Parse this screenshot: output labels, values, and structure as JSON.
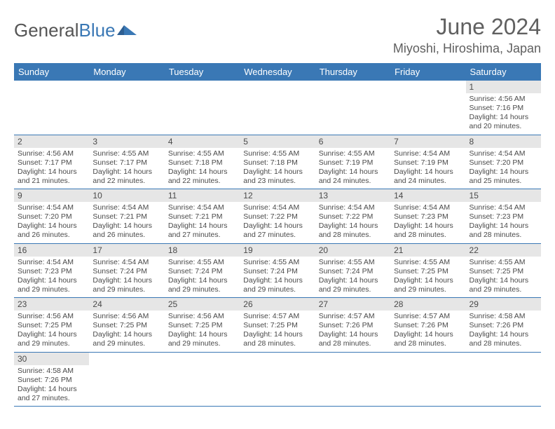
{
  "brand": {
    "part1": "General",
    "part2": "Blue"
  },
  "title": "June 2024",
  "location": "Miyoshi, Hiroshima, Japan",
  "colors": {
    "header_bg": "#3a78b5",
    "header_fg": "#ffffff",
    "row_shade": "#e6e6e6",
    "row_border": "#3a78b5",
    "text": "#4a4a4a"
  },
  "day_headers": [
    "Sunday",
    "Monday",
    "Tuesday",
    "Wednesday",
    "Thursday",
    "Friday",
    "Saturday"
  ],
  "weeks": [
    [
      null,
      null,
      null,
      null,
      null,
      null,
      {
        "n": "1",
        "sr": "4:56 AM",
        "ss": "7:16 PM",
        "dl": "14 hours and 20 minutes."
      }
    ],
    [
      {
        "n": "2",
        "sr": "4:56 AM",
        "ss": "7:17 PM",
        "dl": "14 hours and 21 minutes."
      },
      {
        "n": "3",
        "sr": "4:55 AM",
        "ss": "7:17 PM",
        "dl": "14 hours and 22 minutes."
      },
      {
        "n": "4",
        "sr": "4:55 AM",
        "ss": "7:18 PM",
        "dl": "14 hours and 22 minutes."
      },
      {
        "n": "5",
        "sr": "4:55 AM",
        "ss": "7:18 PM",
        "dl": "14 hours and 23 minutes."
      },
      {
        "n": "6",
        "sr": "4:55 AM",
        "ss": "7:19 PM",
        "dl": "14 hours and 24 minutes."
      },
      {
        "n": "7",
        "sr": "4:54 AM",
        "ss": "7:19 PM",
        "dl": "14 hours and 24 minutes."
      },
      {
        "n": "8",
        "sr": "4:54 AM",
        "ss": "7:20 PM",
        "dl": "14 hours and 25 minutes."
      }
    ],
    [
      {
        "n": "9",
        "sr": "4:54 AM",
        "ss": "7:20 PM",
        "dl": "14 hours and 26 minutes."
      },
      {
        "n": "10",
        "sr": "4:54 AM",
        "ss": "7:21 PM",
        "dl": "14 hours and 26 minutes."
      },
      {
        "n": "11",
        "sr": "4:54 AM",
        "ss": "7:21 PM",
        "dl": "14 hours and 27 minutes."
      },
      {
        "n": "12",
        "sr": "4:54 AM",
        "ss": "7:22 PM",
        "dl": "14 hours and 27 minutes."
      },
      {
        "n": "13",
        "sr": "4:54 AM",
        "ss": "7:22 PM",
        "dl": "14 hours and 28 minutes."
      },
      {
        "n": "14",
        "sr": "4:54 AM",
        "ss": "7:23 PM",
        "dl": "14 hours and 28 minutes."
      },
      {
        "n": "15",
        "sr": "4:54 AM",
        "ss": "7:23 PM",
        "dl": "14 hours and 28 minutes."
      }
    ],
    [
      {
        "n": "16",
        "sr": "4:54 AM",
        "ss": "7:23 PM",
        "dl": "14 hours and 29 minutes."
      },
      {
        "n": "17",
        "sr": "4:54 AM",
        "ss": "7:24 PM",
        "dl": "14 hours and 29 minutes."
      },
      {
        "n": "18",
        "sr": "4:55 AM",
        "ss": "7:24 PM",
        "dl": "14 hours and 29 minutes."
      },
      {
        "n": "19",
        "sr": "4:55 AM",
        "ss": "7:24 PM",
        "dl": "14 hours and 29 minutes."
      },
      {
        "n": "20",
        "sr": "4:55 AM",
        "ss": "7:24 PM",
        "dl": "14 hours and 29 minutes."
      },
      {
        "n": "21",
        "sr": "4:55 AM",
        "ss": "7:25 PM",
        "dl": "14 hours and 29 minutes."
      },
      {
        "n": "22",
        "sr": "4:55 AM",
        "ss": "7:25 PM",
        "dl": "14 hours and 29 minutes."
      }
    ],
    [
      {
        "n": "23",
        "sr": "4:56 AM",
        "ss": "7:25 PM",
        "dl": "14 hours and 29 minutes."
      },
      {
        "n": "24",
        "sr": "4:56 AM",
        "ss": "7:25 PM",
        "dl": "14 hours and 29 minutes."
      },
      {
        "n": "25",
        "sr": "4:56 AM",
        "ss": "7:25 PM",
        "dl": "14 hours and 29 minutes."
      },
      {
        "n": "26",
        "sr": "4:57 AM",
        "ss": "7:25 PM",
        "dl": "14 hours and 28 minutes."
      },
      {
        "n": "27",
        "sr": "4:57 AM",
        "ss": "7:26 PM",
        "dl": "14 hours and 28 minutes."
      },
      {
        "n": "28",
        "sr": "4:57 AM",
        "ss": "7:26 PM",
        "dl": "14 hours and 28 minutes."
      },
      {
        "n": "29",
        "sr": "4:58 AM",
        "ss": "7:26 PM",
        "dl": "14 hours and 28 minutes."
      }
    ],
    [
      {
        "n": "30",
        "sr": "4:58 AM",
        "ss": "7:26 PM",
        "dl": "14 hours and 27 minutes."
      },
      null,
      null,
      null,
      null,
      null,
      null
    ]
  ],
  "labels": {
    "sunrise": "Sunrise: ",
    "sunset": "Sunset: ",
    "daylight": "Daylight: "
  }
}
